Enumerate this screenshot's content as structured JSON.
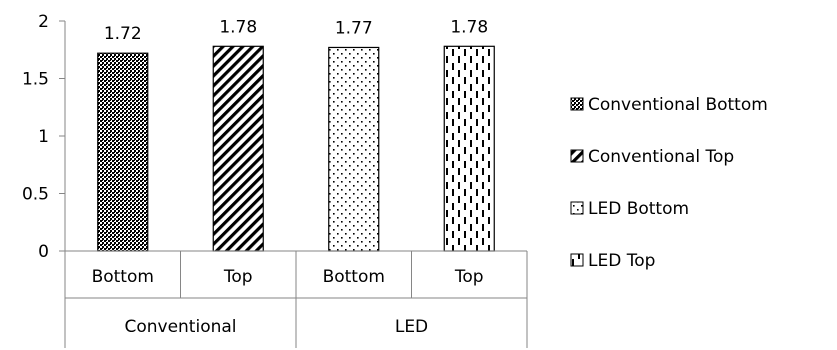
{
  "chart_data": {
    "type": "bar",
    "title": "",
    "xlabel": "",
    "ylabel": "",
    "ylim": [
      0,
      2
    ],
    "yticks": [
      "0",
      "0.5",
      "1",
      "1.5",
      "2"
    ],
    "grid": false,
    "legend_position": "right",
    "groups": [
      "Conventional",
      "LED"
    ],
    "categories": [
      "Bottom",
      "Top",
      "Bottom",
      "Top"
    ],
    "category_groups": [
      "Conventional",
      "Conventional",
      "LED",
      "LED"
    ],
    "values": [
      1.72,
      1.78,
      1.77,
      1.78
    ],
    "data_labels": [
      "1.72",
      "1.78",
      "1.77",
      "1.78"
    ],
    "series_legend": [
      {
        "name": "Conventional Bottom",
        "pattern": "dense-dots"
      },
      {
        "name": "Conventional Top",
        "pattern": "diagonal-hatch"
      },
      {
        "name": "LED Bottom",
        "pattern": "sparse-dots"
      },
      {
        "name": "LED Top",
        "pattern": "dashed-vertical"
      }
    ],
    "colors": {
      "bar_fill": "#ffffff",
      "bar_pattern": "#000000",
      "axis": "#868686"
    }
  }
}
